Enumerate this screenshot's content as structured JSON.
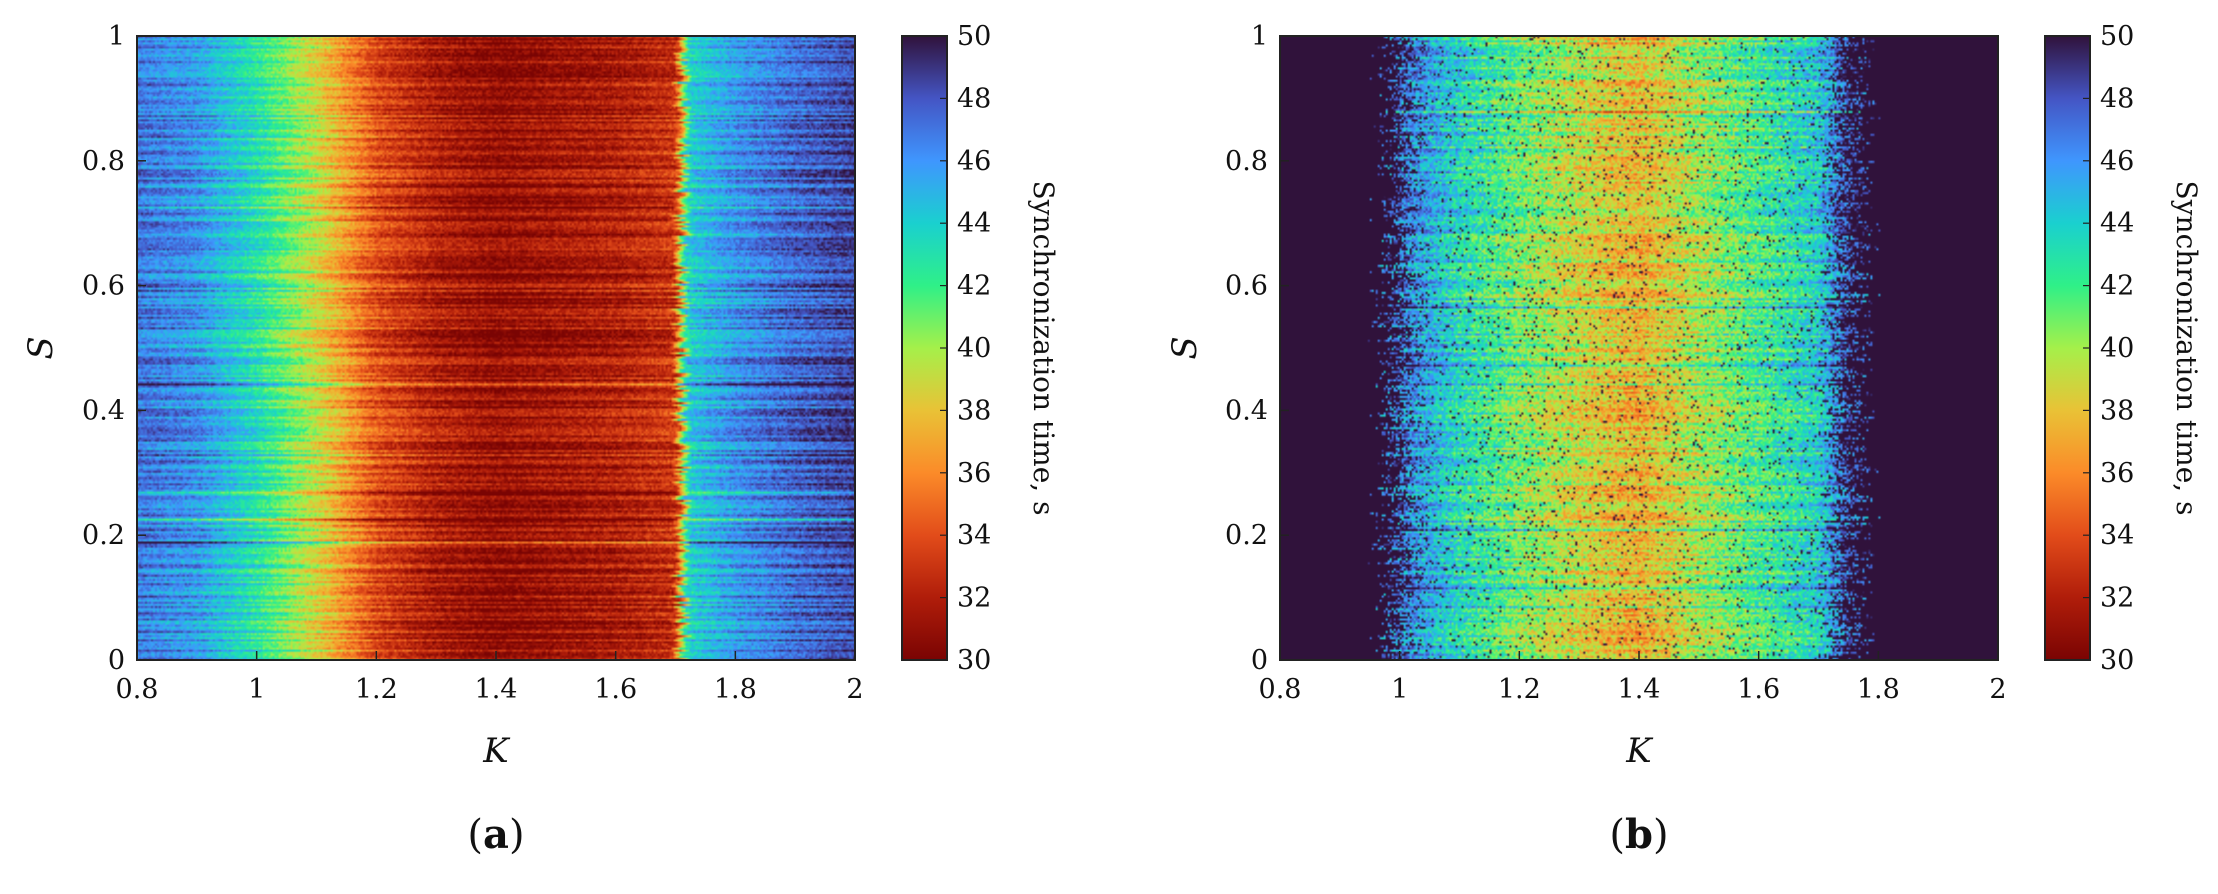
{
  "chart_data": [
    {
      "type": "heatmap",
      "panel_label": "(a)",
      "panel_letter": "a",
      "xlabel": "K",
      "ylabel": "S",
      "xlim": [
        0.8,
        2
      ],
      "ylim": [
        0,
        1
      ],
      "xticks": [
        "0.8",
        "1",
        "1.2",
        "1.4",
        "1.6",
        "1.8",
        "2"
      ],
      "yticks": [
        "0",
        "0.2",
        "0.4",
        "0.6",
        "0.8",
        "1"
      ],
      "colorbar": {
        "label": "Synchronization time, s",
        "range": [
          30,
          50
        ],
        "ticks": [
          "30",
          "32",
          "34",
          "36",
          "38",
          "40",
          "42",
          "44",
          "46",
          "48",
          "50"
        ],
        "colormap": "turbo"
      },
      "profile_K": [
        0.8,
        0.9,
        1.0,
        1.1,
        1.2,
        1.3,
        1.4,
        1.5,
        1.6,
        1.7,
        1.72,
        1.8,
        1.9,
        2.0
      ],
      "profile_time": [
        47,
        46,
        43,
        39,
        34,
        32,
        31,
        31.5,
        32,
        33,
        44,
        46,
        47.5,
        48.5
      ]
    },
    {
      "type": "heatmap",
      "panel_label": "(b)",
      "panel_letter": "b",
      "xlabel": "K",
      "ylabel": "S",
      "xlim": [
        0.8,
        2
      ],
      "ylim": [
        0,
        1
      ],
      "xticks": [
        "0.8",
        "1",
        "1.2",
        "1.4",
        "1.6",
        "1.8",
        "2"
      ],
      "yticks": [
        "0",
        "0.2",
        "0.4",
        "0.6",
        "0.8",
        "1"
      ],
      "colorbar": {
        "label": "Synchronization time, s",
        "range": [
          30,
          50
        ],
        "ticks": [
          "30",
          "32",
          "34",
          "36",
          "38",
          "40",
          "42",
          "44",
          "46",
          "48",
          "50"
        ],
        "colormap": "turbo"
      },
      "no_sync_value": 50,
      "sync_region_K": [
        1.0,
        1.75
      ],
      "profile_K": [
        1.0,
        1.1,
        1.2,
        1.3,
        1.4,
        1.5,
        1.6,
        1.7,
        1.75
      ],
      "profile_time": [
        47,
        43.5,
        41,
        39,
        37.5,
        40,
        42,
        44,
        48
      ]
    }
  ]
}
